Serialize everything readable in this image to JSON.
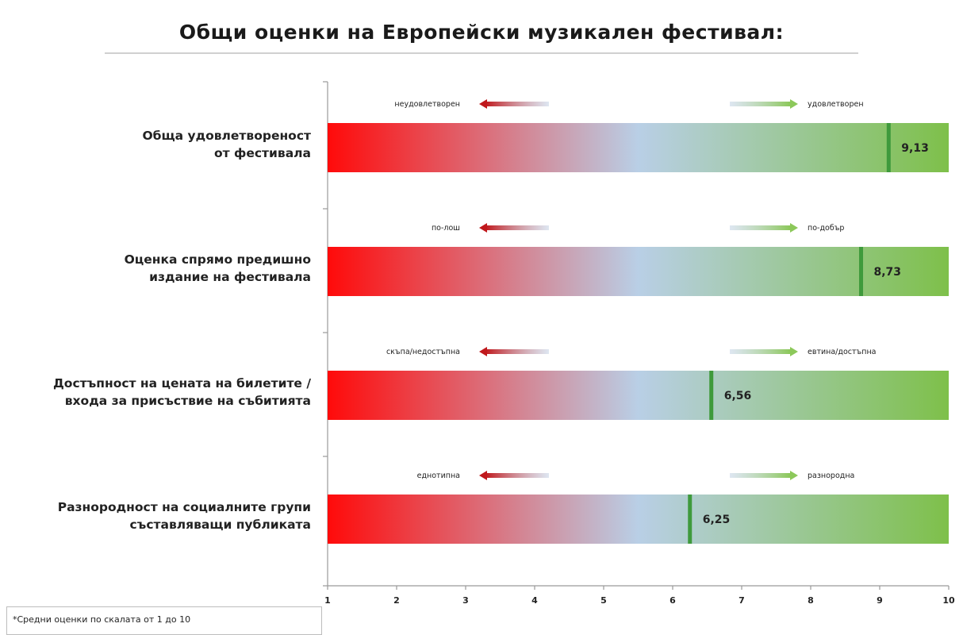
{
  "chart_data": {
    "type": "bar",
    "title": "Общи оценки на  Европейски музикален фестивал:",
    "footnote": "*Средни оценки по скалата от 1 до 10",
    "xlim": [
      1,
      10
    ],
    "x_ticks": [
      "1",
      "2",
      "3",
      "4",
      "5",
      "6",
      "7",
      "8",
      "9",
      "10"
    ],
    "categories": [
      {
        "label_lines": [
          "Обща удовлетвореност",
          "от фестивала"
        ],
        "value": 9.13,
        "value_label": "9,13",
        "low_pole": "неудовлетворен",
        "high_pole": "удовлетворен"
      },
      {
        "label_lines": [
          "Оценка спрямо предишно",
          "издание на фестивала"
        ],
        "value": 8.73,
        "value_label": "8,73",
        "low_pole": "по-лош",
        "high_pole": "по-добър"
      },
      {
        "label_lines": [
          "Достъпност на цената на билетите /",
          "входа за присъствие на събитията"
        ],
        "value": 6.56,
        "value_label": "6,56",
        "low_pole": "скъпа/недостъпна",
        "high_pole": "евтина/достъпна"
      },
      {
        "label_lines": [
          "Разнородност на социалните групи",
          "съставляващи публиката"
        ],
        "value": 6.25,
        "value_label": "6,25",
        "low_pole": "еднотипна",
        "high_pole": "разнородна"
      }
    ],
    "colors": {
      "low": "#ff0a0a",
      "mid": "#b9cfe6",
      "high": "#7ec04a",
      "marker": "#3f9a3c",
      "low_arrow": "#c0181c",
      "high_arrow": "#8cc85a"
    },
    "grid": false
  }
}
